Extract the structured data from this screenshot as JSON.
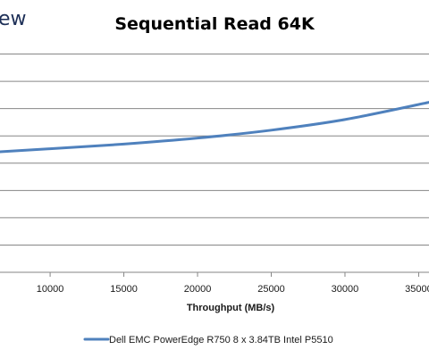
{
  "logo_text": "ew",
  "chart_data": {
    "type": "line",
    "title": "Sequential Read 64K",
    "xlabel": "Throughput (MB/s)",
    "ylabel": "",
    "x_ticks": [
      10000,
      15000,
      20000,
      25000,
      30000,
      35000
    ],
    "x_tick_labels": [
      "10000",
      "15000",
      "20000",
      "25000",
      "30000",
      "35000"
    ],
    "xlim": [
      6600,
      35700
    ],
    "ylim": [
      0,
      9
    ],
    "y_gridlines": [
      1,
      2,
      3,
      4,
      5,
      6,
      7,
      8
    ],
    "grid": true,
    "legend_position": "bottom",
    "series": [
      {
        "name": "Dell EMC PowerEdge R750 8 x 3.84TB Intel P5510",
        "color": "#4f81bd",
        "points": [
          [
            6600,
            4.42
          ],
          [
            10000,
            4.53
          ],
          [
            15000,
            4.7
          ],
          [
            20000,
            4.92
          ],
          [
            25000,
            5.21
          ],
          [
            30000,
            5.6
          ],
          [
            35700,
            6.23
          ]
        ]
      }
    ]
  }
}
